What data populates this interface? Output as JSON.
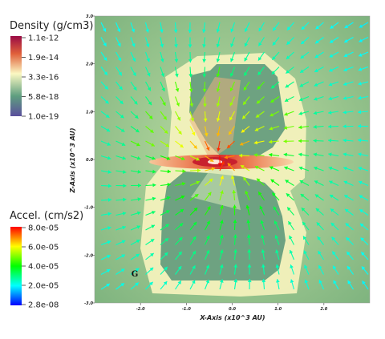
{
  "chart_data": {
    "type": "heatmap",
    "title": "",
    "xlabel": "X-Axis (x10^3 AU)",
    "ylabel": "Z-Axis (x10^3 AU)",
    "xlim": [
      -3.0,
      3.0
    ],
    "ylim": [
      -3.0,
      3.0
    ],
    "x_ticks": [
      "-2.0",
      "-1.0",
      "0.0",
      "1.0",
      "2.0"
    ],
    "x_tick_values": [
      -2.0,
      -1.0,
      0.0,
      1.0,
      2.0
    ],
    "y_ticks": [
      "3.0",
      "2.0",
      "1.0",
      "0.0",
      "-1.0",
      "-2.0",
      "-3.0"
    ],
    "y_tick_values": [
      3.0,
      2.0,
      1.0,
      0.0,
      -1.0,
      -2.0,
      -3.0
    ],
    "annotation": "G",
    "annotation_pos": [
      -2.2,
      -2.45
    ],
    "density_legend": {
      "title": "Density (g/cm3)",
      "ticks": [
        "1.1e-12",
        "1.9e-14",
        "3.3e-16",
        "5.8e-18",
        "1.0e-19"
      ],
      "colors": [
        "#9a0b45",
        "#e0603a",
        "#fbf8c2",
        "#5e9e7f",
        "#5a4e9c"
      ]
    },
    "acceleration_legend": {
      "title": "Accel. (cm/s2)",
      "ticks": [
        "8.0e-05",
        "6.0e-05",
        "4.0e-05",
        "2.0e-05",
        "2.8e-08"
      ],
      "colors": [
        "#ff0000",
        "#ffff00",
        "#00ff00",
        "#00ffff",
        "#0000ff"
      ]
    },
    "grid": false
  }
}
